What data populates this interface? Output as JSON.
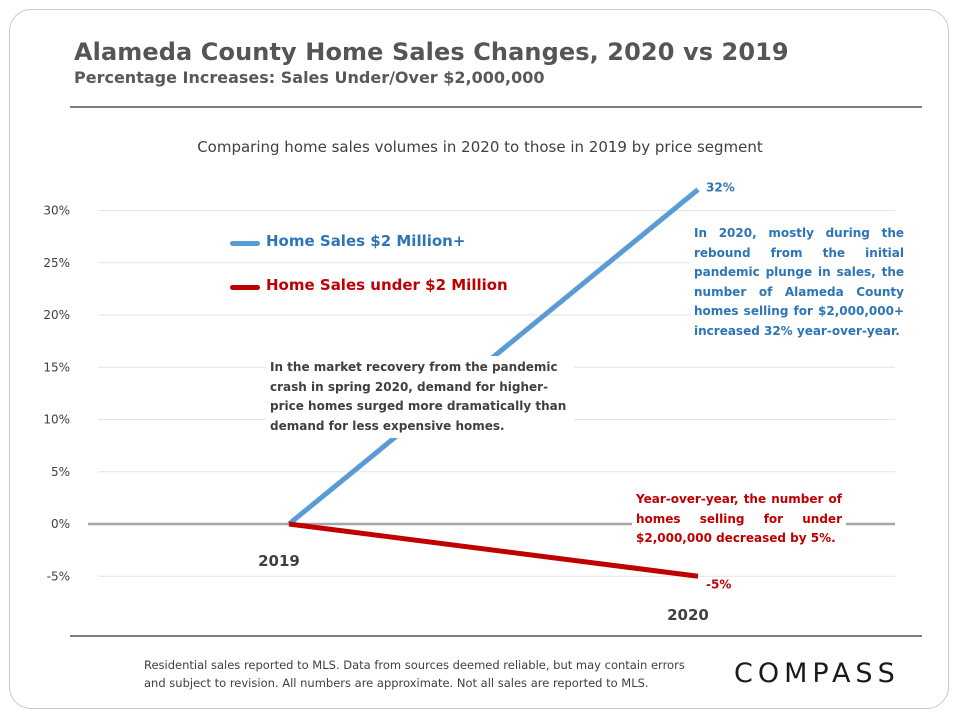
{
  "header": {
    "title": "Alameda County Home Sales Changes, 2020 vs 2019",
    "subtitle": "Percentage Increases: Sales Under/Over $2,000,000"
  },
  "chart_data": {
    "type": "line",
    "title": "Comparing home sales volumes in 2020 to those in 2019 by price segment",
    "x": [
      "2019",
      "2020"
    ],
    "series": [
      {
        "name": "Home Sales $2 Million+",
        "values": [
          0,
          32
        ],
        "color": "#5b9bd5",
        "end_label": "32%"
      },
      {
        "name": "Home Sales under $2 Million",
        "values": [
          0,
          -5
        ],
        "color": "#c00000",
        "end_label": "-5%"
      }
    ],
    "ylim": [
      -5,
      30
    ],
    "yticks": [
      "-5%",
      "0%",
      "5%",
      "10%",
      "15%",
      "20%",
      "25%",
      "30%"
    ],
    "ytick_values": [
      -5,
      0,
      5,
      10,
      15,
      20,
      25,
      30
    ],
    "grid": true,
    "zero_line_color": "#a6a6a6",
    "annotations": [
      "In the market recovery from the pandemic crash in spring 2020, demand for higher-price homes surged more dramatically than demand for less expensive homes.",
      "In 2020, mostly during the rebound from the initial pandemic plunge in sales, the number of Alameda County homes selling for $2,000,000+ increased 32% year-over-year.",
      "Year-over-year, the number of homes selling for under $2,000,000 decreased by 5%."
    ]
  },
  "footer": {
    "note_line1": "Residential sales reported to MLS. Data from sources deemed reliable, but may contain errors",
    "note_line2": "and subject to revision. All numbers are approximate. Not all sales are reported to MLS.",
    "logo": "COMPASS"
  }
}
